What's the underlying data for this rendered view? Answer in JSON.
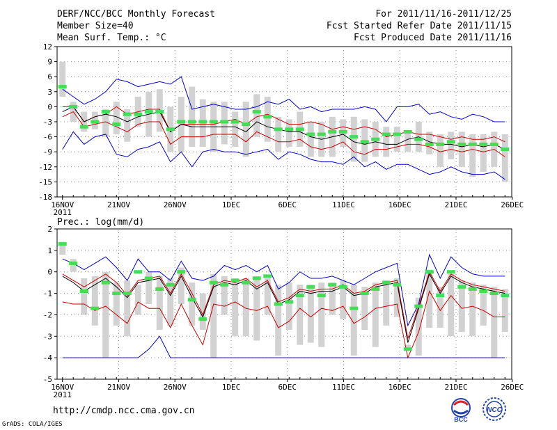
{
  "header": {
    "title": "DERF/NCC/BCC Monthly Forecast",
    "member_size": "Member Size=40",
    "variable": "Mean Surf. Temp.: °C",
    "period": "For 2011/11/16-2011/12/25",
    "fcst_started": "Fcst Started Refer Date 2011/11/15",
    "fcst_produced": "Fcst Produced Date 2011/11/16"
  },
  "footer": {
    "url": "http://cmdp.ncc.cma.gov.cn",
    "grads": "GrADS: COLA/IGES",
    "logo_bcc": "BCC",
    "logo_ncc": "NCC"
  },
  "colors": {
    "envelope": "#0000cc",
    "spread": "#cc0000",
    "mean": "#000000",
    "box": "#d2d2d2",
    "observed": "#44dd55",
    "grid": "#888888"
  },
  "chart_data": [
    {
      "type": "line",
      "title": "Mean Surf. Temp.: °C",
      "x_ticks": [
        "16NOV",
        "21NOV",
        "26NOV",
        "1DEC",
        "6DEC",
        "11DEC",
        "16DEC",
        "21DEC",
        "26DEC"
      ],
      "x_tick_days": [
        0,
        5,
        10,
        15,
        20,
        25,
        30,
        35,
        40
      ],
      "year_label": "2011",
      "ylim": [
        -18,
        12
      ],
      "yticks": [
        12,
        9,
        6,
        3,
        0,
        -3,
        -6,
        -9,
        -12,
        -15,
        -18
      ],
      "series": [
        {
          "name": "max",
          "values": [
            3.5,
            2,
            0.5,
            1.5,
            3,
            5.5,
            5,
            4,
            4.5,
            5,
            4.5,
            6,
            -0.5,
            0,
            0.5,
            0,
            -0.5,
            -0.5,
            0,
            1,
            0.5,
            1.5,
            -0.5,
            0,
            -1,
            -0.5,
            -0.5,
            -0.5,
            0,
            -0.5,
            -3,
            0,
            0,
            0.5,
            -1.5,
            -1,
            -2,
            -2.5,
            -1.5,
            -2,
            -3,
            -3
          ]
        },
        {
          "name": "upper",
          "values": [
            0,
            0,
            -3,
            -2,
            -1.5,
            0,
            -1.5,
            -1,
            -0.5,
            -0.5,
            -5,
            -3.5,
            -3.5,
            -3.5,
            -3.5,
            -3,
            -2.5,
            -3.5,
            -2,
            -1.5,
            -2.5,
            -3.5,
            -3.5,
            -3,
            -3.5,
            -4.5,
            -4,
            -4.5,
            -4,
            -4.5,
            -6,
            -5.5,
            -5,
            -5.5,
            -5.5,
            -6,
            -6.5,
            -6,
            -6.5,
            -6.5,
            -6,
            -7
          ]
        },
        {
          "name": "mean",
          "values": [
            -1,
            0,
            -3,
            -2,
            -1.5,
            -2,
            -3,
            -2,
            -1.5,
            -1,
            -5,
            -3.5,
            -4,
            -4,
            -4,
            -4,
            -4,
            -5,
            -3,
            -4,
            -4.5,
            -5,
            -5,
            -6,
            -6.5,
            -6,
            -5.5,
            -7,
            -7.5,
            -7,
            -7.5,
            -7.5,
            -6.5,
            -6,
            -7,
            -7.5,
            -7.5,
            -8,
            -7.5,
            -8,
            -7.5,
            -8.5
          ]
        },
        {
          "name": "lower",
          "values": [
            -2,
            -1,
            -4,
            -3.5,
            -3,
            -4,
            -5,
            -3.5,
            -3,
            -3,
            -7.5,
            -6,
            -6,
            -6,
            -5.5,
            -5.5,
            -5.5,
            -7,
            -5,
            -6,
            -7,
            -7,
            -6.5,
            -8,
            -8.5,
            -8,
            -7,
            -9,
            -9.5,
            -8.5,
            -8.5,
            -8,
            -7.5,
            -7.5,
            -8,
            -9,
            -8.5,
            -9,
            -8.5,
            -9,
            -8.5,
            -10
          ]
        },
        {
          "name": "min",
          "values": [
            -8.5,
            -5,
            -7.5,
            -6,
            -5.5,
            -9.5,
            -10,
            -8.5,
            -8,
            -7,
            -11,
            -9,
            -12,
            -9,
            -8.5,
            -9,
            -9,
            -9.5,
            -9,
            -8.5,
            -10.5,
            -9,
            -9.5,
            -10.5,
            -11,
            -11,
            -11.5,
            -10,
            -12,
            -11,
            -12.5,
            -11.5,
            -11.5,
            -12.5,
            -13.5,
            -13,
            -12,
            -13,
            -13.5,
            -13.5,
            -13,
            -14.5
          ]
        },
        {
          "name": "box_top",
          "values": [
            9,
            1,
            -1,
            -1,
            -0.5,
            1,
            -0.5,
            2,
            3,
            3.5,
            0,
            2,
            4,
            1.5,
            1,
            1,
            -1,
            1,
            2.5,
            2,
            -2,
            -2.5,
            -1,
            -3,
            -3,
            -2,
            -2.5,
            -2,
            -2.5,
            -3,
            -4,
            -4,
            -5,
            -3,
            -5,
            -5.5,
            -5,
            -5,
            -5.5,
            -5.5,
            -5,
            -5.5
          ]
        },
        {
          "name": "box_bottom",
          "values": [
            2,
            -3,
            -5,
            -4.5,
            -6,
            -5.5,
            -7,
            -4,
            -6,
            -5,
            -9,
            -9,
            -8,
            -8,
            -9,
            -7.5,
            -8,
            -10,
            -6,
            -7,
            -9,
            -8,
            -8,
            -10,
            -10,
            -10,
            -8,
            -11,
            -11,
            -10,
            -10,
            -9,
            -9,
            -9,
            -9.5,
            -12,
            -10.5,
            -12,
            -14,
            -13,
            -12,
            -15
          ]
        },
        {
          "name": "observed",
          "values": [
            4,
            0,
            -4,
            -3,
            -1,
            -3.5,
            -1.5,
            -1.5,
            -1,
            -1,
            -4.5,
            -3,
            -3,
            -3,
            -3,
            -3,
            -3,
            -3.5,
            -1,
            -2,
            -4.5,
            -4.5,
            -4.5,
            -5.5,
            -5.5,
            -5,
            -5,
            -6,
            -7,
            -6.5,
            -5.5,
            -5.5,
            -5,
            -6.5,
            -7.5,
            -7.5,
            -7,
            -7.5,
            -7.5,
            -7.5,
            -7.5,
            -8.5
          ]
        }
      ]
    },
    {
      "type": "line",
      "title": "Prec.: log(mm/d)",
      "x_ticks": [
        "16NOV",
        "21NOV",
        "26NOV",
        "1DEC",
        "6DEC",
        "11DEC",
        "16DEC",
        "21DEC",
        "26DEC"
      ],
      "x_tick_days": [
        0,
        5,
        10,
        15,
        20,
        25,
        30,
        35,
        40
      ],
      "year_label": "2011",
      "ylim": [
        -5,
        2
      ],
      "yticks": [
        2,
        1,
        0,
        -1,
        -2,
        -3,
        -4,
        -5
      ],
      "series": [
        {
          "name": "max",
          "values": [
            0.6,
            0.4,
            0.1,
            0.4,
            0.7,
            0.2,
            -0.4,
            0.6,
            0,
            0,
            -0.4,
            0.5,
            -0.3,
            -0.4,
            -0.2,
            0.3,
            0.1,
            0.3,
            0,
            0.3,
            -0.8,
            -0.5,
            0,
            -0.3,
            -0.3,
            -0.2,
            -0.4,
            -0.6,
            -0.3,
            0,
            0.2,
            0.4,
            -2.5,
            -1.5,
            0.8,
            -0.3,
            0.7,
            0.2,
            -0.1,
            -0.2,
            -0.2,
            -0.2
          ]
        },
        {
          "name": "upper",
          "values": [
            -0.1,
            -0.4,
            -0.7,
            -0.4,
            -0.1,
            -0.5,
            -1.1,
            -0.4,
            -0.3,
            -0.2,
            -1,
            -0.1,
            -1,
            -2,
            -0.6,
            -0.4,
            -0.5,
            -0.3,
            -0.7,
            -0.4,
            -1.4,
            -1.2,
            -0.8,
            -0.9,
            -0.8,
            -0.8,
            -0.6,
            -1,
            -0.9,
            -0.6,
            -0.5,
            -0.4,
            -3.1,
            -1.6,
            0,
            -0.9,
            -0.1,
            -0.4,
            -0.6,
            -0.7,
            -0.8,
            -0.9
          ]
        },
        {
          "name": "mean",
          "values": [
            -0.2,
            -0.5,
            -0.9,
            -0.6,
            -0.3,
            -0.7,
            -1.2,
            -0.5,
            -0.4,
            -0.3,
            -1.1,
            -0.2,
            -1.2,
            -2.1,
            -0.7,
            -0.5,
            -0.6,
            -0.4,
            -0.8,
            -0.5,
            -1.5,
            -1.3,
            -0.9,
            -1,
            -0.9,
            -0.9,
            -0.7,
            -1.1,
            -1,
            -0.7,
            -0.6,
            -0.5,
            -3.3,
            -1.7,
            -0.1,
            -1,
            -0.2,
            -0.5,
            -0.7,
            -0.8,
            -0.9,
            -1
          ]
        },
        {
          "name": "lower",
          "values": [
            -1.4,
            -1.5,
            -1.5,
            -1.8,
            -1.6,
            -2,
            -2.4,
            -1.4,
            -1.7,
            -1.7,
            -2.6,
            -1.5,
            -2.5,
            -3.4,
            -1.5,
            -1.6,
            -1.4,
            -1.7,
            -1.8,
            -1.6,
            -2.6,
            -2.3,
            -1.7,
            -2.1,
            -1.7,
            -1.8,
            -1.6,
            -2.4,
            -2.1,
            -1.7,
            -1.6,
            -1.5,
            -4,
            -2.8,
            -0.9,
            -1.8,
            -1.1,
            -1.7,
            -1.6,
            -1.8,
            -2.1,
            -2.1
          ]
        },
        {
          "name": "min",
          "values": [
            -4,
            -4,
            -4,
            -4,
            -4,
            -4,
            -4,
            -4,
            -3.6,
            -3,
            -4,
            -4,
            -4,
            -4,
            -4,
            -4,
            -4,
            -4,
            -4,
            -4,
            -4,
            -4,
            -4,
            -4,
            -4,
            -4,
            -4,
            -4,
            -4,
            -4,
            -4,
            -4,
            -4,
            -4,
            -4,
            -4,
            -4,
            -4,
            -4,
            -4,
            -4,
            -4
          ]
        },
        {
          "name": "box_top",
          "values": [
            1.4,
            0.6,
            -0.3,
            -0.2,
            0,
            -0.5,
            -0.4,
            -0.6,
            0,
            -0.2,
            -0.3,
            0.2,
            -0.5,
            -1,
            -0.1,
            -0.2,
            -0.3,
            -0.3,
            -0.2,
            -0.3,
            -0.6,
            -0.5,
            -0.6,
            -0.6,
            -0.5,
            -0.5,
            -0.4,
            -0.6,
            -0.7,
            -0.5,
            -0.4,
            -0.3,
            -3.4,
            -1.2,
            0.1,
            -0.7,
            -0.1,
            -0.4,
            -0.5,
            -0.6,
            -0.7,
            -0.8
          ]
        },
        {
          "name": "box_bottom",
          "values": [
            0.8,
            0,
            -2,
            -2.5,
            -4,
            -2.5,
            -3,
            -2,
            -1.5,
            -2.7,
            -2.5,
            -1.5,
            -2.5,
            -2.7,
            -4,
            -2,
            -3,
            -3,
            -3.2,
            -2,
            -3.9,
            -2.7,
            -3.4,
            -3.3,
            -3.5,
            -2,
            -2.2,
            -3.9,
            -2.7,
            -3.5,
            -2.5,
            -2.1,
            -3.6,
            -3.9,
            -2.6,
            -2.6,
            -3,
            -2.8,
            -3,
            -2.5,
            -4,
            -2.8
          ]
        },
        {
          "name": "observed",
          "values": [
            1.3,
            0.4,
            -0.9,
            -1.7,
            -0.5,
            -1,
            -1,
            0,
            -0.3,
            -0.8,
            -0.6,
            0,
            -1.3,
            -2.2,
            -0.5,
            -0.6,
            -0.4,
            -0.5,
            -0.3,
            -0.2,
            -1.5,
            -1.4,
            -1.1,
            -0.7,
            -1.1,
            -0.6,
            -0.7,
            -1.7,
            -1,
            -0.8,
            -0.5,
            -0.6,
            -3.6,
            -1.6,
            0,
            -1.1,
            0,
            -0.7,
            -0.8,
            -0.9,
            -1,
            -1.1
          ]
        }
      ]
    }
  ]
}
